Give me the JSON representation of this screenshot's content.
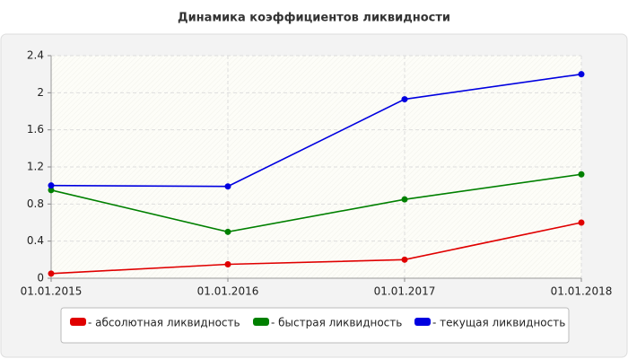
{
  "chart_data": {
    "type": "line",
    "title": "Динамика коэффициентов ликвидности",
    "categories": [
      "01.01.2015",
      "01.01.2016",
      "01.01.2017",
      "01.01.2018"
    ],
    "series": [
      {
        "name": "- абсолютная ликвидность",
        "color": "#e00000",
        "values": [
          0.05,
          0.15,
          0.2,
          0.6
        ]
      },
      {
        "name": "- быстрая ликвидность",
        "color": "#008000",
        "values": [
          0.95,
          0.5,
          0.85,
          1.12
        ]
      },
      {
        "name": "- текущая ликвидность",
        "color": "#0000e0",
        "values": [
          1.0,
          0.99,
          1.93,
          2.2
        ]
      }
    ],
    "ylim": [
      0,
      2.4
    ],
    "yticks": [
      0,
      0.4,
      0.8,
      1.2,
      1.6,
      2,
      2.4
    ],
    "grid": true
  }
}
